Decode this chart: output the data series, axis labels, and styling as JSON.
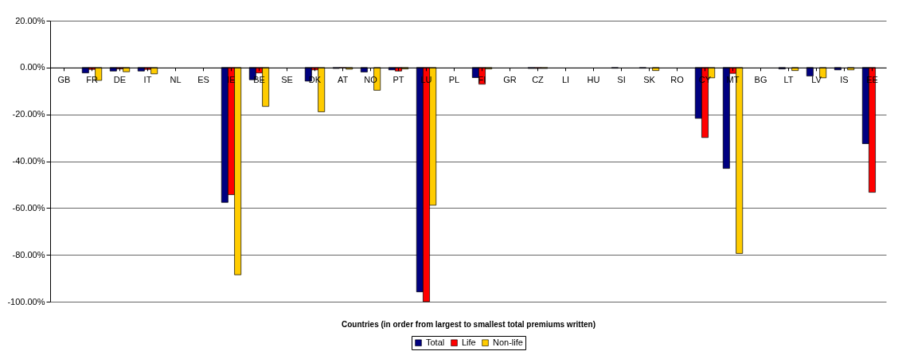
{
  "chart_data": {
    "type": "bar",
    "xlabel": "Countries (in order from largest to smallest total premiums written)",
    "categories": [
      "GB",
      "FR",
      "DE",
      "IT",
      "NL",
      "ES",
      "IE",
      "BE",
      "SE",
      "DK",
      "AT",
      "NO",
      "PT",
      "LU",
      "PL",
      "FI",
      "GR",
      "CZ",
      "LI",
      "HU",
      "SI",
      "SK",
      "RO",
      "CY",
      "MT",
      "BG",
      "LT",
      "LV",
      "IS",
      "EE"
    ],
    "series": [
      {
        "name": "Total",
        "color": "#000080",
        "values": [
          0,
          -2.3,
          -1.5,
          -1.5,
          0,
          0,
          -57.6,
          -5.2,
          0,
          -5.8,
          -0.4,
          -1.9,
          -1.0,
          -95.8,
          0,
          -4.3,
          0,
          -0.4,
          0,
          0,
          -0.3,
          -0.3,
          0,
          -21.7,
          -43.1,
          0,
          -0.6,
          -3.6,
          -1.0,
          -32.5
        ]
      },
      {
        "name": "Life",
        "color": "#ff0000",
        "values": [
          0,
          -0.8,
          -0.6,
          -0.8,
          0,
          0,
          -54.3,
          -2.3,
          0,
          -1.0,
          -0.2,
          0,
          -1.5,
          -100,
          0,
          -7.1,
          0,
          -0.4,
          0,
          0,
          0,
          0,
          0,
          -29.9,
          -2.5,
          0,
          0,
          0,
          0,
          -53.3
        ]
      },
      {
        "name": "Non-life",
        "color": "#ffcc00",
        "values": [
          0,
          -5.5,
          -1.8,
          -2.7,
          0,
          0,
          -88.5,
          -16.6,
          0,
          -18.9,
          -0.7,
          -9.7,
          -0.6,
          -58.8,
          0,
          -0.6,
          0,
          -0.4,
          0,
          0,
          0,
          -1.3,
          0,
          -4.4,
          -79.4,
          0,
          -1.3,
          -4.4,
          -1.0,
          0
        ]
      }
    ],
    "ylim": [
      -100,
      20
    ],
    "yticks": [
      {
        "value": -100,
        "label": "-100.00%"
      },
      {
        "value": -80,
        "label": "-80.00%"
      },
      {
        "value": -60,
        "label": "-60.00%"
      },
      {
        "value": -40,
        "label": "-40.00%"
      },
      {
        "value": -20,
        "label": "-20.00%"
      },
      {
        "value": 0,
        "label": "0.00%"
      },
      {
        "value": 20,
        "label": "20.00%"
      }
    ],
    "grid": "y",
    "legend": "bottom"
  }
}
